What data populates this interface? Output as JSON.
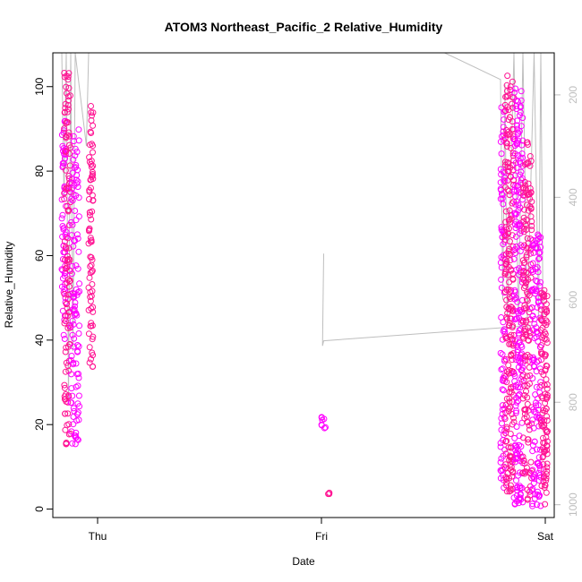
{
  "chart_data": {
    "type": "scatter",
    "title": "ATOM3 Northeast_Pacific_2 Relative_Humidity",
    "xlabel": "Date",
    "ylabel": "Relative_Humidity",
    "ylim": [
      -2,
      108
    ],
    "xlim": [
      -0.2,
      2.04
    ],
    "x_ticks": [
      {
        "value": 0,
        "label": "Thu"
      },
      {
        "value": 1,
        "label": "Fri"
      },
      {
        "value": 2,
        "label": "Sat"
      }
    ],
    "y_ticks": [
      0,
      20,
      40,
      60,
      80,
      100
    ],
    "right_axis": {
      "label_color": "#bebebe",
      "ticks": [
        200,
        400,
        600,
        800,
        1000
      ],
      "range": [
        118,
        1025
      ],
      "reversed": true
    },
    "grid": false,
    "legend": "none",
    "point_color": "#ff1493",
    "point_color_alt": "#ff00ff",
    "line_color": "#bebebe",
    "clusters": [
      {
        "name": "c1",
        "x_range": [
          -0.16,
          -0.14
        ],
        "y_range": [
          40,
          92
        ],
        "n": 60
      },
      {
        "name": "c2",
        "x_range": [
          -0.15,
          -0.12
        ],
        "y_range": [
          15,
          104
        ],
        "n": 120
      },
      {
        "name": "c3",
        "x_range": [
          -0.12,
          -0.08
        ],
        "y_range": [
          15,
          90
        ],
        "n": 110
      },
      {
        "name": "c4",
        "x_range": [
          -0.04,
          -0.02
        ],
        "y_range": [
          33,
          96
        ],
        "n": 80
      },
      {
        "name": "fri-upper",
        "x_range": [
          0.0,
          0.02
        ],
        "y_range": [
          19,
          22
        ],
        "n": 8,
        "x_offset": 1.0
      },
      {
        "name": "fri-lower",
        "x_range": [
          0.03,
          0.04
        ],
        "y_range": [
          3,
          4
        ],
        "n": 3,
        "x_offset": 1.0
      },
      {
        "name": "s1",
        "x_range": [
          1.8,
          1.82
        ],
        "y_range": [
          5,
          98
        ],
        "n": 90
      },
      {
        "name": "s2",
        "x_range": [
          1.82,
          1.86
        ],
        "y_range": [
          4,
          103
        ],
        "n": 220
      },
      {
        "name": "s3",
        "x_range": [
          1.86,
          1.9
        ],
        "y_range": [
          1,
          100
        ],
        "n": 200
      },
      {
        "name": "s4",
        "x_range": [
          1.9,
          1.94
        ],
        "y_range": [
          1,
          87
        ],
        "n": 160
      },
      {
        "name": "s5",
        "x_range": [
          1.94,
          1.98
        ],
        "y_range": [
          0.5,
          65
        ],
        "n": 130
      },
      {
        "name": "s6",
        "x_range": [
          1.98,
          2.01
        ],
        "y_range": [
          1,
          52
        ],
        "n": 110
      }
    ],
    "pressure_trace": [
      [
        -0.16,
        118
      ],
      [
        -0.15,
        400
      ],
      [
        -0.14,
        118
      ],
      [
        -0.13,
        800
      ],
      [
        -0.12,
        118
      ],
      [
        -0.11,
        700
      ],
      [
        -0.1,
        118
      ],
      [
        -0.05,
        300
      ],
      [
        -0.04,
        118
      ],
      [
        -0.02,
        118
      ],
      [
        1.0,
        118
      ],
      [
        1.55,
        118
      ],
      [
        1.8,
        170
      ],
      [
        1.81,
        600
      ],
      [
        1.82,
        180
      ],
      [
        1.83,
        650
      ],
      [
        1.86,
        118
      ],
      [
        1.88,
        650
      ],
      [
        1.9,
        118
      ],
      [
        1.92,
        640
      ],
      [
        1.95,
        118
      ],
      [
        1.97,
        640
      ],
      [
        1.98,
        118
      ],
      [
        1.99,
        640
      ]
    ],
    "pressure_trace_fri": [
      [
        1.01,
        510
      ],
      [
        1.005,
        690
      ],
      [
        1.01,
        680
      ],
      [
        1.95,
        650
      ]
    ]
  }
}
